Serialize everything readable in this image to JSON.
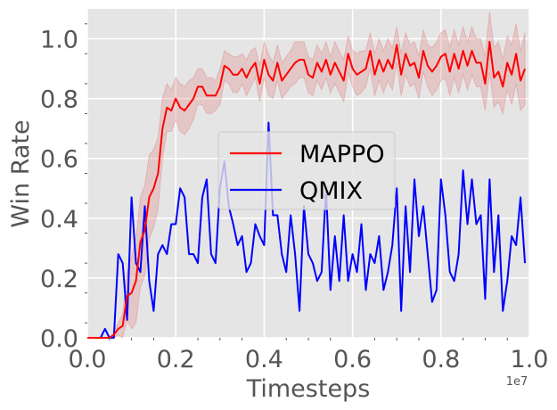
{
  "chart_data": {
    "type": "line",
    "xlabel": "Timesteps",
    "ylabel": "Win Rate",
    "x_offset_label": "1e7",
    "xlim": [
      0,
      1.0
    ],
    "ylim": [
      0,
      1.1
    ],
    "xticks": [
      "0.0",
      "0.2",
      "0.4",
      "0.6",
      "0.8",
      "1.0"
    ],
    "yticks": [
      "0.0",
      "0.2",
      "0.4",
      "0.6",
      "0.8",
      "1.0"
    ],
    "grid": true,
    "legend_position": "center",
    "series": [
      {
        "name": "MAPPO",
        "color": "#ff0000",
        "band_color": "#e07070",
        "x": [
          0,
          0.01,
          0.02,
          0.03,
          0.04,
          0.05,
          0.06,
          0.07,
          0.08,
          0.09,
          0.1,
          0.11,
          0.12,
          0.13,
          0.14,
          0.15,
          0.16,
          0.17,
          0.18,
          0.19,
          0.2,
          0.21,
          0.22,
          0.23,
          0.24,
          0.25,
          0.26,
          0.27,
          0.28,
          0.29,
          0.3,
          0.31,
          0.32,
          0.33,
          0.34,
          0.35,
          0.36,
          0.37,
          0.38,
          0.39,
          0.4,
          0.41,
          0.42,
          0.43,
          0.44,
          0.45,
          0.46,
          0.47,
          0.48,
          0.49,
          0.5,
          0.51,
          0.52,
          0.53,
          0.54,
          0.55,
          0.56,
          0.57,
          0.58,
          0.59,
          0.6,
          0.61,
          0.62,
          0.63,
          0.64,
          0.65,
          0.66,
          0.67,
          0.68,
          0.69,
          0.7,
          0.71,
          0.72,
          0.73,
          0.74,
          0.75,
          0.76,
          0.77,
          0.78,
          0.79,
          0.8,
          0.81,
          0.82,
          0.83,
          0.84,
          0.85,
          0.86,
          0.87,
          0.88,
          0.89,
          0.9,
          0.91,
          0.92,
          0.93,
          0.94,
          0.95,
          0.96,
          0.97,
          0.98,
          0.99
        ],
        "values": [
          0,
          0,
          0,
          0,
          0,
          0,
          0.01,
          0.03,
          0.04,
          0.14,
          0.15,
          0.19,
          0.32,
          0.36,
          0.47,
          0.5,
          0.55,
          0.7,
          0.77,
          0.76,
          0.8,
          0.77,
          0.76,
          0.78,
          0.8,
          0.84,
          0.84,
          0.81,
          0.81,
          0.81,
          0.84,
          0.91,
          0.9,
          0.88,
          0.88,
          0.9,
          0.87,
          0.9,
          0.92,
          0.85,
          0.93,
          0.88,
          0.86,
          0.92,
          0.86,
          0.88,
          0.9,
          0.92,
          0.93,
          0.93,
          0.88,
          0.87,
          0.92,
          0.89,
          0.93,
          0.88,
          0.92,
          0.89,
          0.86,
          0.95,
          0.9,
          0.88,
          0.89,
          0.9,
          0.96,
          0.88,
          0.93,
          0.89,
          0.93,
          0.9,
          0.98,
          0.88,
          0.95,
          0.91,
          0.92,
          0.87,
          0.96,
          0.91,
          0.89,
          0.91,
          0.94,
          0.95,
          0.89,
          0.95,
          0.9,
          0.96,
          0.91,
          0.96,
          0.92,
          0.92,
          0.85,
          0.99,
          0.87,
          0.89,
          0.84,
          0.92,
          0.88,
          0.95,
          0.86,
          0.9
        ],
        "band_half_width": [
          0,
          0,
          0,
          0,
          0,
          0,
          0.01,
          0.02,
          0.04,
          0.08,
          0.12,
          0.14,
          0.15,
          0.15,
          0.14,
          0.13,
          0.12,
          0.1,
          0.08,
          0.07,
          0.07,
          0.08,
          0.08,
          0.08,
          0.07,
          0.06,
          0.06,
          0.06,
          0.06,
          0.05,
          0.06,
          0.05,
          0.05,
          0.06,
          0.06,
          0.05,
          0.06,
          0.06,
          0.05,
          0.06,
          0.06,
          0.07,
          0.06,
          0.06,
          0.06,
          0.06,
          0.06,
          0.07,
          0.06,
          0.06,
          0.06,
          0.06,
          0.06,
          0.06,
          0.06,
          0.06,
          0.07,
          0.07,
          0.07,
          0.06,
          0.06,
          0.07,
          0.07,
          0.06,
          0.06,
          0.07,
          0.07,
          0.07,
          0.07,
          0.07,
          0.06,
          0.07,
          0.07,
          0.07,
          0.07,
          0.07,
          0.07,
          0.07,
          0.08,
          0.08,
          0.08,
          0.08,
          0.08,
          0.08,
          0.08,
          0.08,
          0.08,
          0.08,
          0.08,
          0.08,
          0.09,
          0.1,
          0.1,
          0.1,
          0.09,
          0.09,
          0.1,
          0.1,
          0.1,
          0.12
        ]
      },
      {
        "name": "QMIX",
        "color": "#0000ff",
        "x": [
          0,
          0.01,
          0.02,
          0.03,
          0.04,
          0.05,
          0.06,
          0.07,
          0.08,
          0.09,
          0.1,
          0.11,
          0.12,
          0.13,
          0.14,
          0.15,
          0.16,
          0.17,
          0.18,
          0.19,
          0.2,
          0.21,
          0.22,
          0.23,
          0.24,
          0.25,
          0.26,
          0.27,
          0.28,
          0.29,
          0.3,
          0.31,
          0.32,
          0.33,
          0.34,
          0.35,
          0.36,
          0.37,
          0.38,
          0.39,
          0.4,
          0.41,
          0.42,
          0.43,
          0.44,
          0.45,
          0.46,
          0.47,
          0.48,
          0.49,
          0.5,
          0.51,
          0.52,
          0.53,
          0.54,
          0.55,
          0.56,
          0.57,
          0.58,
          0.59,
          0.6,
          0.61,
          0.62,
          0.63,
          0.64,
          0.65,
          0.66,
          0.67,
          0.68,
          0.69,
          0.7,
          0.71,
          0.72,
          0.73,
          0.74,
          0.75,
          0.76,
          0.77,
          0.78,
          0.79,
          0.8,
          0.81,
          0.82,
          0.83,
          0.84,
          0.85,
          0.86,
          0.87,
          0.88,
          0.89,
          0.9,
          0.91,
          0.92,
          0.93,
          0.94,
          0.95,
          0.96,
          0.97,
          0.98,
          0.99
        ],
        "values": [
          0,
          0,
          0,
          0,
          0.03,
          0,
          0,
          0.28,
          0.25,
          0.06,
          0.47,
          0.25,
          0.22,
          0.44,
          0.19,
          0.09,
          0.28,
          0.31,
          0.28,
          0.38,
          0.38,
          0.5,
          0.47,
          0.28,
          0.28,
          0.25,
          0.47,
          0.53,
          0.28,
          0.25,
          0.5,
          0.59,
          0.44,
          0.38,
          0.31,
          0.34,
          0.22,
          0.25,
          0.38,
          0.34,
          0.31,
          0.72,
          0.41,
          0.41,
          0.28,
          0.22,
          0.41,
          0.28,
          0.09,
          0.44,
          0.28,
          0.25,
          0.19,
          0.22,
          0.5,
          0.16,
          0.34,
          0.19,
          0.41,
          0.19,
          0.28,
          0.22,
          0.38,
          0.16,
          0.28,
          0.25,
          0.34,
          0.16,
          0.22,
          0.31,
          0.5,
          0.09,
          0.44,
          0.22,
          0.53,
          0.34,
          0.44,
          0.28,
          0.12,
          0.16,
          0.53,
          0.41,
          0.22,
          0.19,
          0.28,
          0.56,
          0.38,
          0.53,
          0.38,
          0.41,
          0.13,
          0.53,
          0.22,
          0.41,
          0.09,
          0.19,
          0.34,
          0.31,
          0.47,
          0.25
        ]
      }
    ]
  }
}
